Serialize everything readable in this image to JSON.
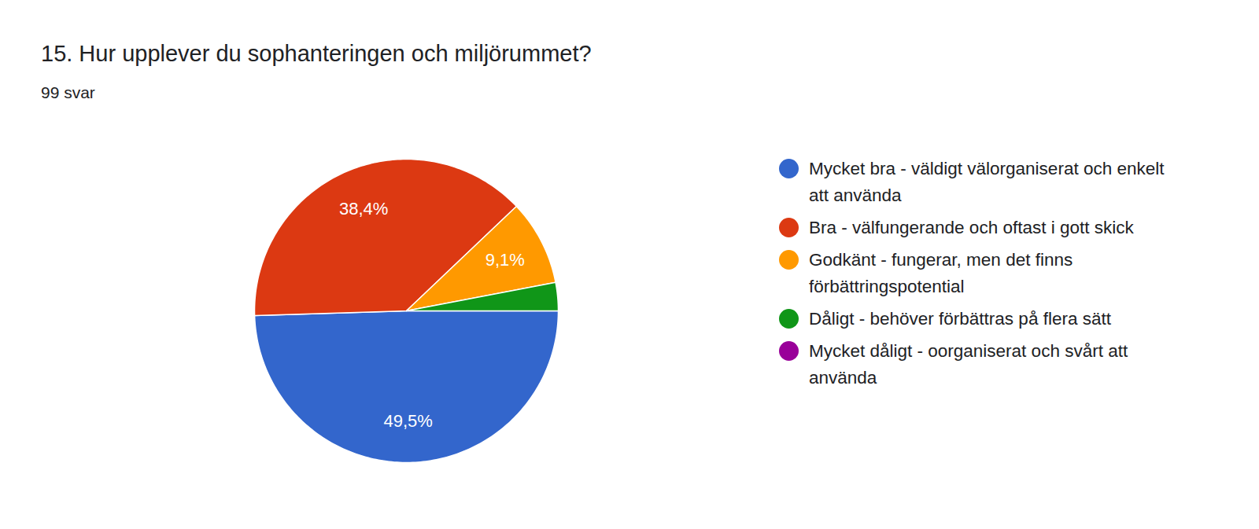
{
  "chart_data": {
    "type": "pie",
    "title": "15. Hur upplever du sophanteringen och miljörummet?",
    "subtitle": "99 svar",
    "categories": [
      "Mycket bra - väldigt välorganiserat och enkelt att använda",
      "Bra - välfungerande och oftast i gott skick",
      "Godkänt - fungerar, men det finns förbättringspotential",
      "Dåligt - behöver förbättras på flera sätt",
      "Mycket dåligt - oorganiserat och svårt att använda"
    ],
    "values": [
      49.5,
      38.4,
      9.1,
      3.0,
      0
    ],
    "colors": [
      "#3366cc",
      "#dc3912",
      "#ff9900",
      "#109618",
      "#990099"
    ],
    "data_labels": true,
    "value_labels": [
      "49,5%",
      "38,4%",
      "9,1%",
      null,
      null
    ],
    "legend": "right"
  }
}
